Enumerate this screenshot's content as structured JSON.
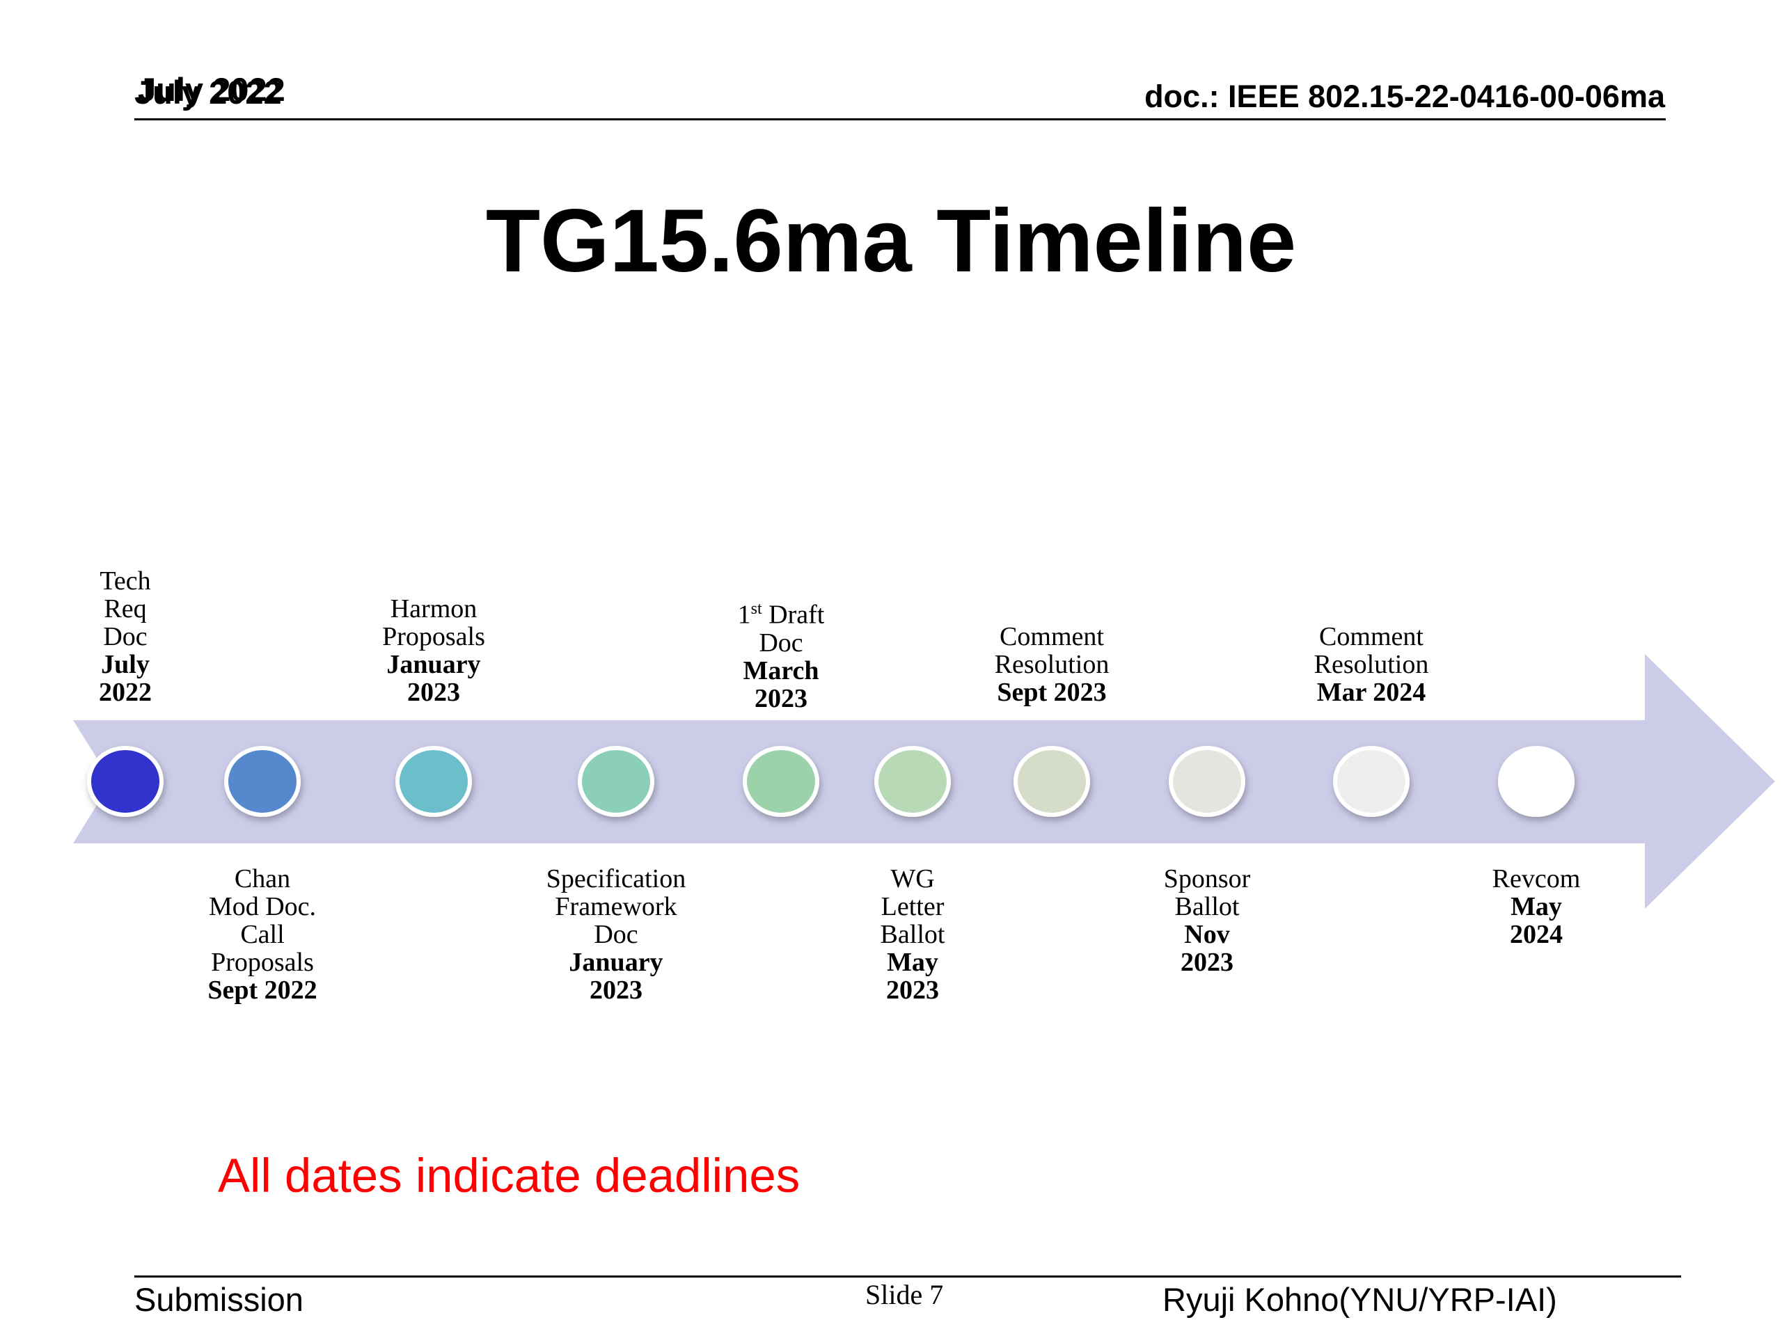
{
  "header": {
    "date": "July 2022",
    "doc": "doc.: IEEE 802.15-22-0416-00-06ma"
  },
  "title": "TG15.6ma Timeline",
  "timeline": {
    "arrow_color": "#cccce9",
    "milestones": [
      {
        "lines": [
          "Tech",
          "Req",
          "Doc"
        ],
        "bold": [
          "July",
          "2022"
        ],
        "position": "above",
        "color": "#3333cc"
      },
      {
        "lines": [
          "Chan",
          "Mod Doc.",
          "Call",
          "Proposals"
        ],
        "bold": [
          "Sept 2022"
        ],
        "position": "below",
        "color": "#5588cc"
      },
      {
        "lines": [
          "Harmon",
          "Proposals"
        ],
        "bold": [
          "January",
          "2023"
        ],
        "position": "above",
        "color": "#6bbfcb"
      },
      {
        "lines": [
          "Specification",
          "Framework",
          "Doc"
        ],
        "bold": [
          "January",
          "2023"
        ],
        "position": "below",
        "color": "#8ccfb8"
      },
      {
        "lines": [
          "Doc"
        ],
        "first_line": {
          "num": "1",
          "sup": "st",
          "rest": " Draft"
        },
        "bold": [
          "March",
          "2023"
        ],
        "position": "above",
        "color": "#9cd2aa"
      },
      {
        "lines": [
          "WG",
          "Letter",
          "Ballot"
        ],
        "bold": [
          "May",
          "2023"
        ],
        "position": "below",
        "color": "#b8d9b5"
      },
      {
        "lines": [
          "Comment",
          "Resolution"
        ],
        "bold": [
          "Sept 2023"
        ],
        "position": "above",
        "color": "#d5dcc8"
      },
      {
        "lines": [
          "Sponsor",
          "Ballot"
        ],
        "bold": [
          "Nov",
          "2023"
        ],
        "position": "below",
        "color": "#e3e5df"
      },
      {
        "lines": [
          "Comment",
          "Resolution"
        ],
        "bold": [
          "Mar 2024"
        ],
        "position": "above",
        "color": "#eeeeec"
      },
      {
        "lines": [
          "Revcom"
        ],
        "bold": [
          "May",
          "2024"
        ],
        "position": "below",
        "color": "#ffffff"
      }
    ]
  },
  "note": "All dates indicate deadlines",
  "footer": {
    "left": "Submission",
    "slide": "Slide 7",
    "author": "Ryuji Kohno(YNU/YRP-IAI)"
  }
}
